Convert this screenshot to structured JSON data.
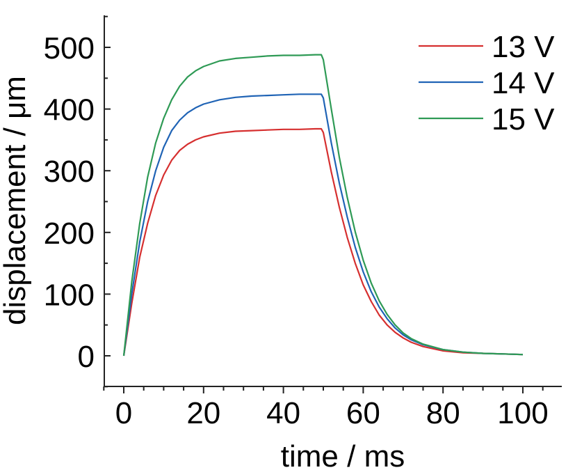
{
  "chart_data": {
    "type": "line",
    "title": "",
    "xlabel": "time / ms",
    "ylabel": "displacement / μm",
    "xlim": [
      -5,
      108
    ],
    "ylim": [
      -50,
      550
    ],
    "xticks": [
      0,
      20,
      40,
      60,
      80,
      100
    ],
    "xtick_labels": [
      "0",
      "20",
      "40",
      "60",
      "80",
      "100"
    ],
    "yticks": [
      0,
      100,
      200,
      300,
      400,
      500
    ],
    "ytick_labels": [
      "0",
      "100",
      "200",
      "300",
      "400",
      "500"
    ],
    "grid": false,
    "legend_position": "top-right",
    "series": [
      {
        "name": "13 V",
        "color": "#d62f2f",
        "x": [
          0,
          2,
          4,
          6,
          8,
          10,
          12,
          14,
          16,
          18,
          20,
          24,
          28,
          32,
          36,
          40,
          44,
          48,
          49.5,
          50,
          52,
          54,
          56,
          58,
          60,
          62,
          64,
          66,
          68,
          70,
          72,
          75,
          80,
          85,
          90,
          95,
          100
        ],
        "values": [
          0,
          85,
          160,
          215,
          260,
          293,
          317,
          333,
          343,
          350,
          355,
          361,
          364,
          365,
          366,
          367,
          367,
          368,
          368,
          362,
          298,
          241,
          192,
          150,
          115,
          88,
          66,
          50,
          38,
          29,
          22,
          15,
          8,
          5,
          4,
          3,
          2
        ]
      },
      {
        "name": "14 V",
        "color": "#1f63b5",
        "x": [
          0,
          2,
          4,
          6,
          8,
          10,
          12,
          14,
          16,
          18,
          20,
          24,
          28,
          32,
          36,
          40,
          44,
          48,
          49.5,
          50,
          52,
          54,
          56,
          58,
          60,
          62,
          64,
          66,
          68,
          70,
          72,
          75,
          80,
          85,
          90,
          95,
          100
        ],
        "values": [
          0,
          100,
          185,
          250,
          300,
          338,
          365,
          382,
          394,
          402,
          408,
          415,
          419,
          421,
          422,
          423,
          424,
          424,
          424,
          418,
          345,
          280,
          225,
          176,
          136,
          104,
          79,
          60,
          45,
          34,
          26,
          18,
          10,
          6,
          4,
          3,
          2
        ]
      },
      {
        "name": "15 V",
        "color": "#2e9a55",
        "x": [
          0,
          2,
          4,
          6,
          8,
          10,
          12,
          14,
          16,
          18,
          20,
          24,
          28,
          32,
          36,
          40,
          44,
          48,
          49.5,
          50,
          52,
          54,
          56,
          58,
          60,
          62,
          64,
          66,
          68,
          70,
          72,
          75,
          80,
          85,
          90,
          95,
          100
        ],
        "values": [
          0,
          120,
          215,
          290,
          345,
          385,
          415,
          437,
          452,
          462,
          469,
          478,
          482,
          484,
          486,
          487,
          487,
          488,
          488,
          480,
          400,
          322,
          257,
          201,
          155,
          118,
          89,
          67,
          50,
          37,
          28,
          19,
          10,
          6,
          4,
          3,
          2
        ]
      }
    ]
  }
}
